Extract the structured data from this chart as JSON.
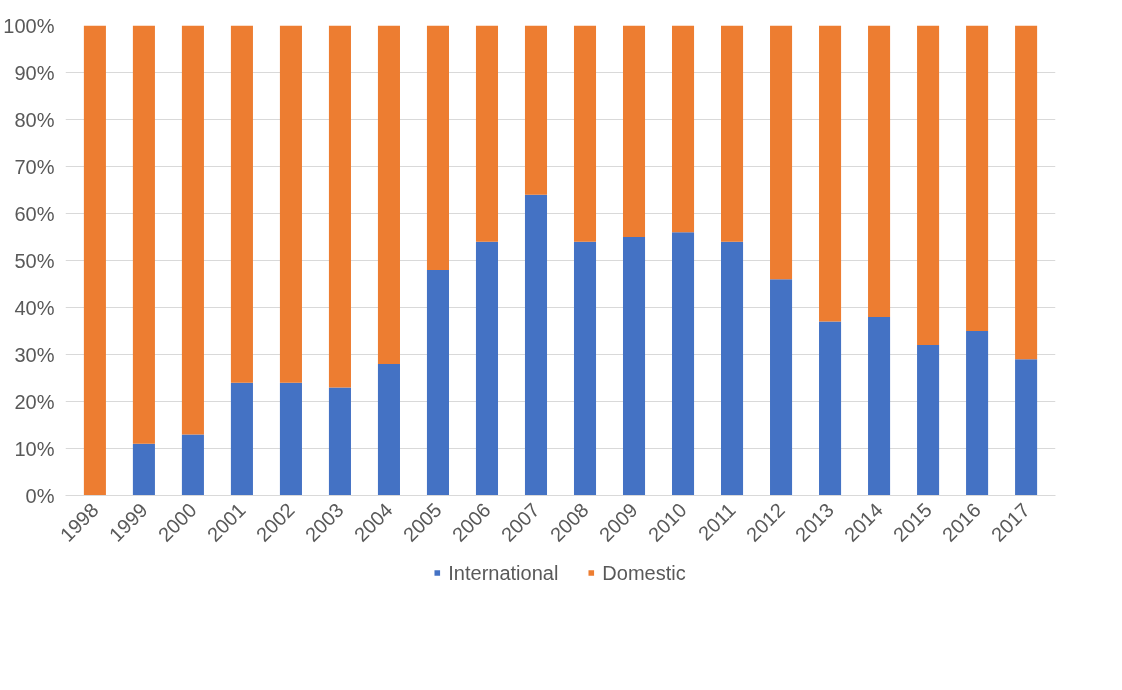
{
  "chart_data": {
    "type": "bar",
    "stacked": true,
    "categories": [
      "1998",
      "1999",
      "2000",
      "2001",
      "2002",
      "2003",
      "2004",
      "2005",
      "2006",
      "2007",
      "2008",
      "2009",
      "2010",
      "2011",
      "2012",
      "2013",
      "2014",
      "2015",
      "2016",
      "2017"
    ],
    "series": [
      {
        "name": "International",
        "color": "#4472c4",
        "values": [
          0,
          11,
          13,
          24,
          24,
          23,
          28,
          48,
          54,
          64,
          54,
          55,
          56,
          54,
          46,
          37,
          38,
          32,
          35,
          29
        ]
      },
      {
        "name": "Domestic",
        "color": "#ed7d31",
        "values": [
          100,
          89,
          87,
          76,
          76,
          77,
          72,
          52,
          46,
          36,
          46,
          45,
          44,
          46,
          54,
          63,
          62,
          68,
          65,
          71
        ]
      }
    ],
    "ylim": [
      0,
      100
    ],
    "yticks": [
      {
        "value": 0,
        "label": "0%"
      },
      {
        "value": 10,
        "label": "10%"
      },
      {
        "value": 20,
        "label": "20%"
      },
      {
        "value": 30,
        "label": "30%"
      },
      {
        "value": 40,
        "label": "40%"
      },
      {
        "value": 50,
        "label": "50%"
      },
      {
        "value": 60,
        "label": "60%"
      },
      {
        "value": 70,
        "label": "70%"
      },
      {
        "value": 80,
        "label": "80%"
      },
      {
        "value": 90,
        "label": "90%"
      },
      {
        "value": 100,
        "label": "100%"
      }
    ],
    "grid": "y",
    "legend": "bottom"
  }
}
